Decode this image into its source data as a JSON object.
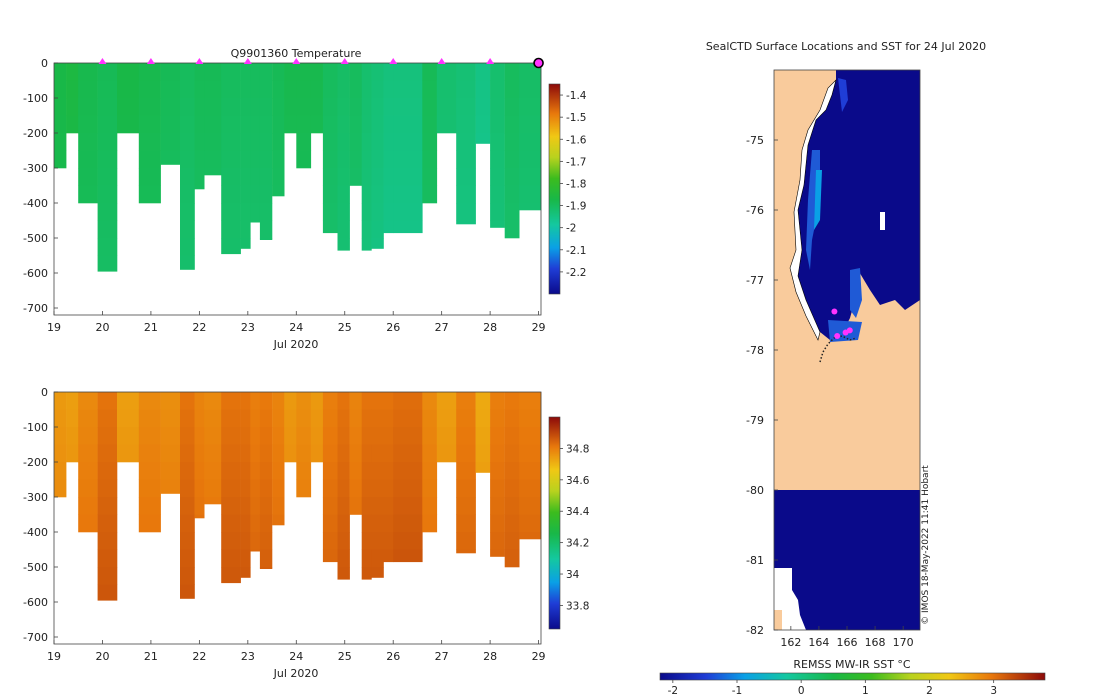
{
  "colors": {
    "land": "#f9cb9c",
    "ocean_cold": "#0a0a8a",
    "marker": "#ff33ff",
    "blank": "#ffffff"
  },
  "chart_data": [
    {
      "id": "temperature",
      "type": "heatmap",
      "title": "Q9901360  Temperature",
      "xlabel": "Jul 2020",
      "x_ticks": [
        "19",
        "20",
        "21",
        "22",
        "23",
        "24",
        "25",
        "26",
        "27",
        "28",
        "29"
      ],
      "y_ticks": [
        "0",
        "-100",
        "-200",
        "-300",
        "-400",
        "-500",
        "-600",
        "-700"
      ],
      "xlim": [
        19,
        29.05
      ],
      "ylim": [
        -720,
        0
      ],
      "colorbar_ticks": [
        "-1.4",
        "-1.5",
        "-1.6",
        "-1.7",
        "-1.8",
        "-1.9",
        "-2",
        "-2.1",
        "-2.2"
      ],
      "clim": [
        -2.3,
        -1.35
      ],
      "profile_markers_day": [
        20,
        21,
        22,
        23,
        24,
        25,
        26,
        27,
        28,
        29
      ],
      "profiles": [
        {
          "t": 19.0,
          "depth": 300,
          "v": -1.87
        },
        {
          "t": 19.25,
          "depth": 200,
          "v": -1.86
        },
        {
          "t": 19.5,
          "depth": 400,
          "v": -1.88
        },
        {
          "t": 19.9,
          "depth": 595,
          "v": -1.89
        },
        {
          "t": 20.3,
          "depth": 200,
          "v": -1.87
        },
        {
          "t": 20.75,
          "depth": 400,
          "v": -1.88
        },
        {
          "t": 21.2,
          "depth": 290,
          "v": -1.89
        },
        {
          "t": 21.6,
          "depth": 590,
          "v": -1.9
        },
        {
          "t": 21.9,
          "depth": 360,
          "v": -1.89
        },
        {
          "t": 22.1,
          "depth": 320,
          "v": -1.89
        },
        {
          "t": 22.45,
          "depth": 545,
          "v": -1.9
        },
        {
          "t": 22.85,
          "depth": 530,
          "v": -1.9
        },
        {
          "t": 23.05,
          "depth": 455,
          "v": -1.9
        },
        {
          "t": 23.25,
          "depth": 505,
          "v": -1.9
        },
        {
          "t": 23.5,
          "depth": 380,
          "v": -1.89
        },
        {
          "t": 23.75,
          "depth": 200,
          "v": -1.88
        },
        {
          "t": 24.0,
          "depth": 300,
          "v": -1.88
        },
        {
          "t": 24.3,
          "depth": 200,
          "v": -1.88
        },
        {
          "t": 24.55,
          "depth": 485,
          "v": -1.9
        },
        {
          "t": 24.85,
          "depth": 535,
          "v": -1.91
        },
        {
          "t": 25.1,
          "depth": 350,
          "v": -1.9
        },
        {
          "t": 25.35,
          "depth": 535,
          "v": -1.92
        },
        {
          "t": 25.55,
          "depth": 530,
          "v": -1.93
        },
        {
          "t": 25.8,
          "depth": 485,
          "v": -1.94
        },
        {
          "t": 26.0,
          "depth": 485,
          "v": -1.94
        },
        {
          "t": 26.6,
          "depth": 400,
          "v": -1.89
        },
        {
          "t": 26.9,
          "depth": 200,
          "v": -1.92
        },
        {
          "t": 27.3,
          "depth": 460,
          "v": -1.93
        },
        {
          "t": 27.7,
          "depth": 230,
          "v": -1.95
        },
        {
          "t": 28.0,
          "depth": 470,
          "v": -1.92
        },
        {
          "t": 28.3,
          "depth": 500,
          "v": -1.9
        },
        {
          "t": 28.6,
          "depth": 420,
          "v": -1.91
        }
      ]
    },
    {
      "id": "salinity",
      "type": "heatmap",
      "title": "",
      "xlabel": "Jul 2020",
      "x_ticks": [
        "19",
        "20",
        "21",
        "22",
        "23",
        "24",
        "25",
        "26",
        "27",
        "28",
        "29"
      ],
      "y_ticks": [
        "0",
        "-100",
        "-200",
        "-300",
        "-400",
        "-500",
        "-600",
        "-700"
      ],
      "xlim": [
        19,
        29.05
      ],
      "ylim": [
        -720,
        0
      ],
      "colorbar_ticks": [
        "34.8",
        "34.6",
        "34.4",
        "34.2",
        "34",
        "33.8"
      ],
      "clim": [
        33.65,
        35.0
      ],
      "profiles": [
        {
          "t": 19.0,
          "depth": 300,
          "v": 34.75
        },
        {
          "t": 19.25,
          "depth": 200,
          "v": 34.74
        },
        {
          "t": 19.5,
          "depth": 400,
          "v": 34.78
        },
        {
          "t": 19.9,
          "depth": 595,
          "v": 34.82
        },
        {
          "t": 20.3,
          "depth": 200,
          "v": 34.74
        },
        {
          "t": 20.75,
          "depth": 400,
          "v": 34.78
        },
        {
          "t": 21.2,
          "depth": 290,
          "v": 34.77
        },
        {
          "t": 21.6,
          "depth": 590,
          "v": 34.82
        },
        {
          "t": 21.9,
          "depth": 360,
          "v": 34.79
        },
        {
          "t": 22.1,
          "depth": 320,
          "v": 34.78
        },
        {
          "t": 22.45,
          "depth": 545,
          "v": 34.82
        },
        {
          "t": 22.85,
          "depth": 530,
          "v": 34.82
        },
        {
          "t": 23.05,
          "depth": 455,
          "v": 34.8
        },
        {
          "t": 23.25,
          "depth": 505,
          "v": 34.81
        },
        {
          "t": 23.5,
          "depth": 380,
          "v": 34.79
        },
        {
          "t": 23.75,
          "depth": 200,
          "v": 34.75
        },
        {
          "t": 24.0,
          "depth": 300,
          "v": 34.77
        },
        {
          "t": 24.3,
          "depth": 200,
          "v": 34.75
        },
        {
          "t": 24.55,
          "depth": 485,
          "v": 34.8
        },
        {
          "t": 24.85,
          "depth": 535,
          "v": 34.82
        },
        {
          "t": 25.1,
          "depth": 350,
          "v": 34.79
        },
        {
          "t": 25.35,
          "depth": 535,
          "v": 34.82
        },
        {
          "t": 25.55,
          "depth": 530,
          "v": 34.82
        },
        {
          "t": 25.8,
          "depth": 485,
          "v": 34.82
        },
        {
          "t": 26.0,
          "depth": 485,
          "v": 34.83
        },
        {
          "t": 26.6,
          "depth": 400,
          "v": 34.78
        },
        {
          "t": 26.9,
          "depth": 200,
          "v": 34.74
        },
        {
          "t": 27.3,
          "depth": 460,
          "v": 34.8
        },
        {
          "t": 27.7,
          "depth": 230,
          "v": 34.72
        },
        {
          "t": 28.0,
          "depth": 470,
          "v": 34.8
        },
        {
          "t": 28.3,
          "depth": 500,
          "v": 34.81
        },
        {
          "t": 28.6,
          "depth": 420,
          "v": 34.8
        }
      ]
    },
    {
      "id": "sst-map",
      "type": "heatmap",
      "title": "SealCTD Surface Locations and SST for 24 Jul 2020",
      "x_ticks": [
        "162",
        "164",
        "166",
        "168",
        "170"
      ],
      "y_ticks": [
        "-75",
        "-76",
        "-77",
        "-78",
        "-79",
        "-80",
        "-81",
        "-82"
      ],
      "xlim": [
        160.8,
        171.2
      ],
      "ylim": [
        -82,
        -74
      ],
      "colorbar_label": "REMSS MW-IR SST °C",
      "colorbar_ticks": [
        "-2",
        "-1",
        "0",
        "1",
        "2",
        "3"
      ],
      "clim": [
        -2.2,
        3.8
      ],
      "seal_positions": [
        {
          "lon": 165.1,
          "lat": -77.45
        },
        {
          "lon": 165.3,
          "lat": -77.8
        },
        {
          "lon": 165.9,
          "lat": -77.75
        },
        {
          "lon": 166.2,
          "lat": -77.72
        }
      ],
      "credit": "© IMOS 18-May-2022 11:41 Hobart"
    }
  ]
}
